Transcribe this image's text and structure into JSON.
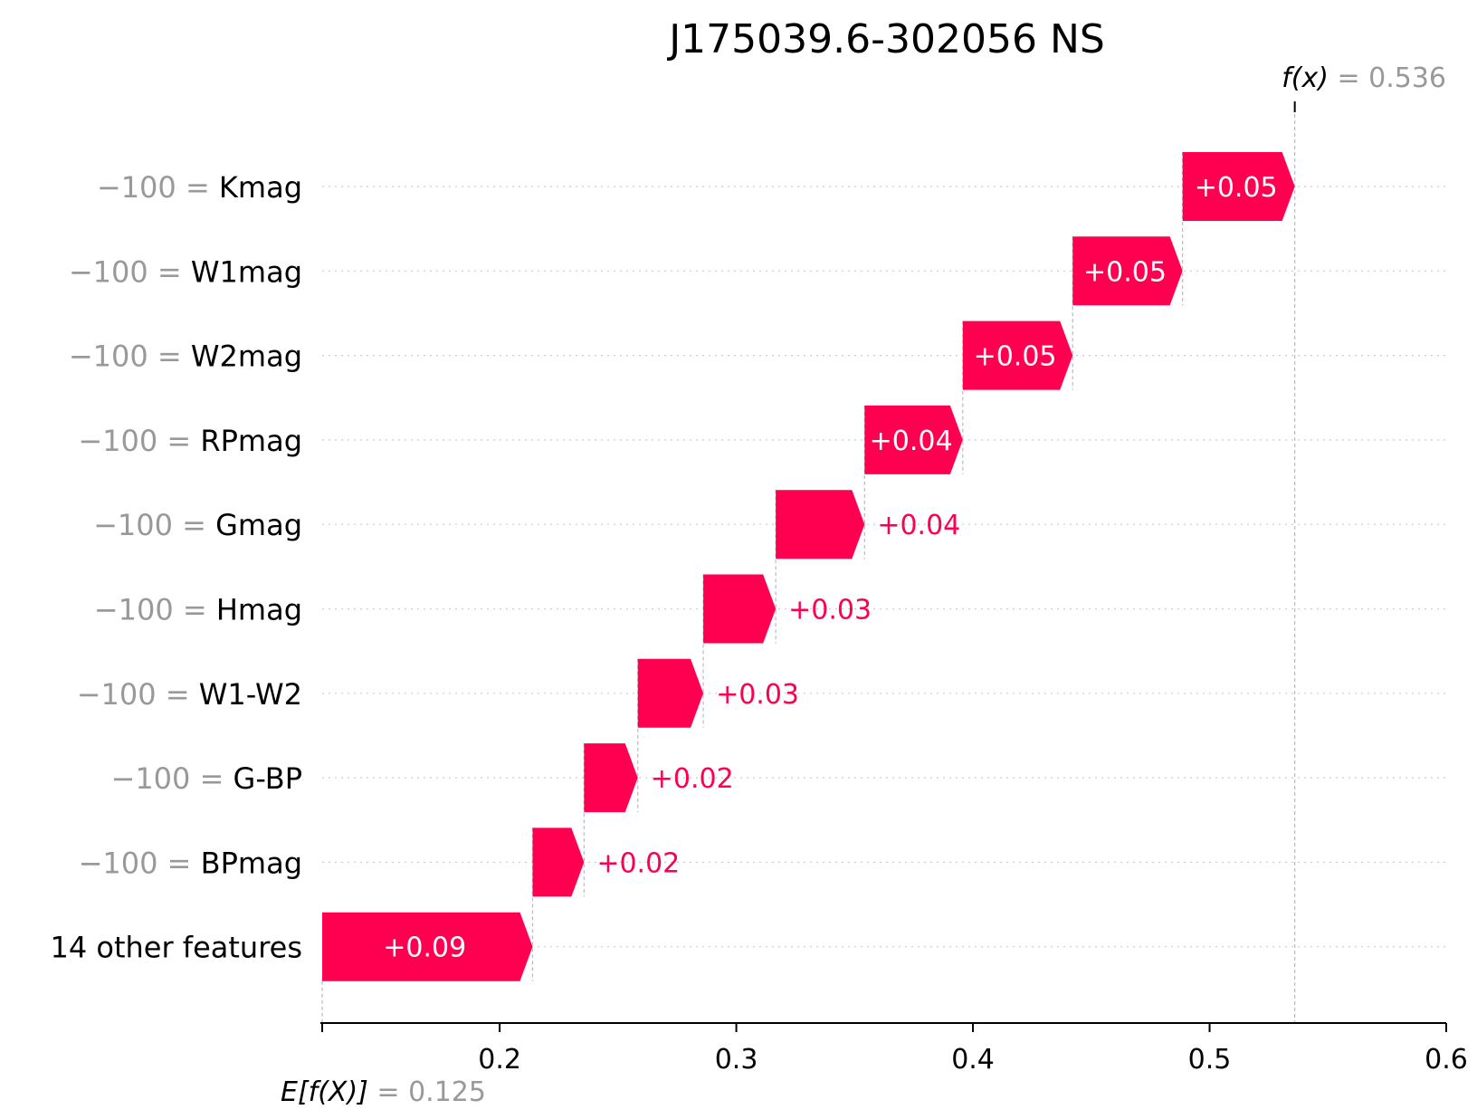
{
  "chart_data": {
    "type": "waterfall",
    "title": "J175039.6-302056 NS",
    "base_value": 0.125,
    "base_label": "E[f(X)]",
    "base_value_text": "= 0.125",
    "output_value": 0.536,
    "output_label": "f(x)",
    "output_value_text": "= 0.536",
    "xlim": [
      0.125,
      0.6
    ],
    "xticks": [
      0.2,
      0.3,
      0.4,
      0.5,
      0.6
    ],
    "xtick_labels": [
      "0.2",
      "0.3",
      "0.4",
      "0.5",
      "0.6"
    ],
    "grid": "horizontal dotted",
    "features": [
      {
        "value": "−100 =",
        "name": "Kmag",
        "contribution": 0.048,
        "label": "+0.05"
      },
      {
        "value": "−100 =",
        "name": "W1mag",
        "contribution": 0.047,
        "label": "+0.05"
      },
      {
        "value": "−100 =",
        "name": "W2mag",
        "contribution": 0.047,
        "label": "+0.05"
      },
      {
        "value": "−100 =",
        "name": "RPmag",
        "contribution": 0.042,
        "label": "+0.04"
      },
      {
        "value": "−100 =",
        "name": "Gmag",
        "contribution": 0.038,
        "label": "+0.04"
      },
      {
        "value": "−100 =",
        "name": "Hmag",
        "contribution": 0.031,
        "label": "+0.03"
      },
      {
        "value": "−100 =",
        "name": "W1-W2",
        "contribution": 0.028,
        "label": "+0.03"
      },
      {
        "value": "−100 =",
        "name": "G-BP",
        "contribution": 0.023,
        "label": "+0.02"
      },
      {
        "value": "−100 =",
        "name": "BPmag",
        "contribution": 0.022,
        "label": "+0.02"
      },
      {
        "value": "",
        "name": "14 other features",
        "contribution": 0.09,
        "label": "+0.09"
      }
    ],
    "colors": {
      "positive": "#ff0051",
      "axis": "#000000",
      "grid": "#cccccc",
      "guide": "#bbbbbb",
      "muted_text": "#999999"
    }
  }
}
